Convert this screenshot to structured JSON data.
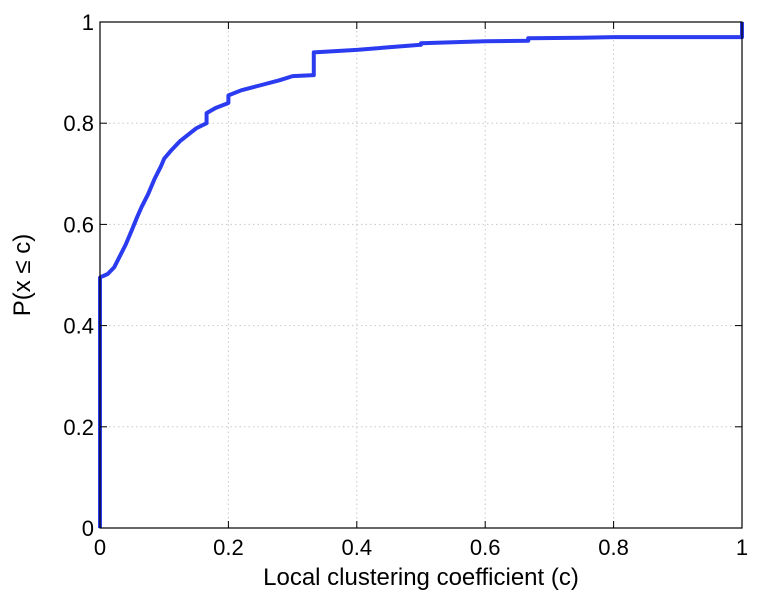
{
  "chart_data": {
    "type": "line",
    "title": "",
    "xlabel": "Local clustering coefficient (c)",
    "ylabel": "P(x ≤ c)",
    "xlim": [
      0,
      1
    ],
    "ylim": [
      0,
      1
    ],
    "grid": true,
    "legend": "none",
    "xticks": [
      {
        "value": 0,
        "label": "0"
      },
      {
        "value": 0.2,
        "label": "0.2"
      },
      {
        "value": 0.4,
        "label": "0.4"
      },
      {
        "value": 0.6,
        "label": "0.6"
      },
      {
        "value": 0.8,
        "label": "0.8"
      },
      {
        "value": 1,
        "label": "1"
      }
    ],
    "yticks": [
      {
        "value": 0,
        "label": "0"
      },
      {
        "value": 0.2,
        "label": "0.2"
      },
      {
        "value": 0.4,
        "label": "0.4"
      },
      {
        "value": 0.6,
        "label": "0.6"
      },
      {
        "value": 0.8,
        "label": "0.8"
      },
      {
        "value": 1,
        "label": "1"
      }
    ],
    "series": [
      {
        "color": "#2b3cf0",
        "x": [
          0,
          0,
          0.003,
          0.012,
          0.022,
          0.03,
          0.04,
          0.05,
          0.058,
          0.065,
          0.075,
          0.085,
          0.095,
          0.1,
          0.11,
          0.125,
          0.14,
          0.15,
          0.166,
          0.166,
          0.18,
          0.2,
          0.2,
          0.22,
          0.25,
          0.28,
          0.3,
          0.333,
          0.333,
          0.36,
          0.4,
          0.45,
          0.5,
          0.5,
          0.55,
          0.6,
          0.667,
          0.667,
          0.75,
          0.8,
          0.9,
          1.0,
          1.0
        ],
        "y": [
          0,
          0.495,
          0.497,
          0.502,
          0.515,
          0.535,
          0.56,
          0.59,
          0.615,
          0.635,
          0.66,
          0.69,
          0.715,
          0.73,
          0.745,
          0.765,
          0.78,
          0.79,
          0.8,
          0.82,
          0.83,
          0.84,
          0.855,
          0.865,
          0.875,
          0.885,
          0.893,
          0.895,
          0.94,
          0.942,
          0.945,
          0.95,
          0.955,
          0.958,
          0.96,
          0.962,
          0.963,
          0.968,
          0.969,
          0.97,
          0.97,
          0.97,
          1.0
        ]
      }
    ]
  }
}
